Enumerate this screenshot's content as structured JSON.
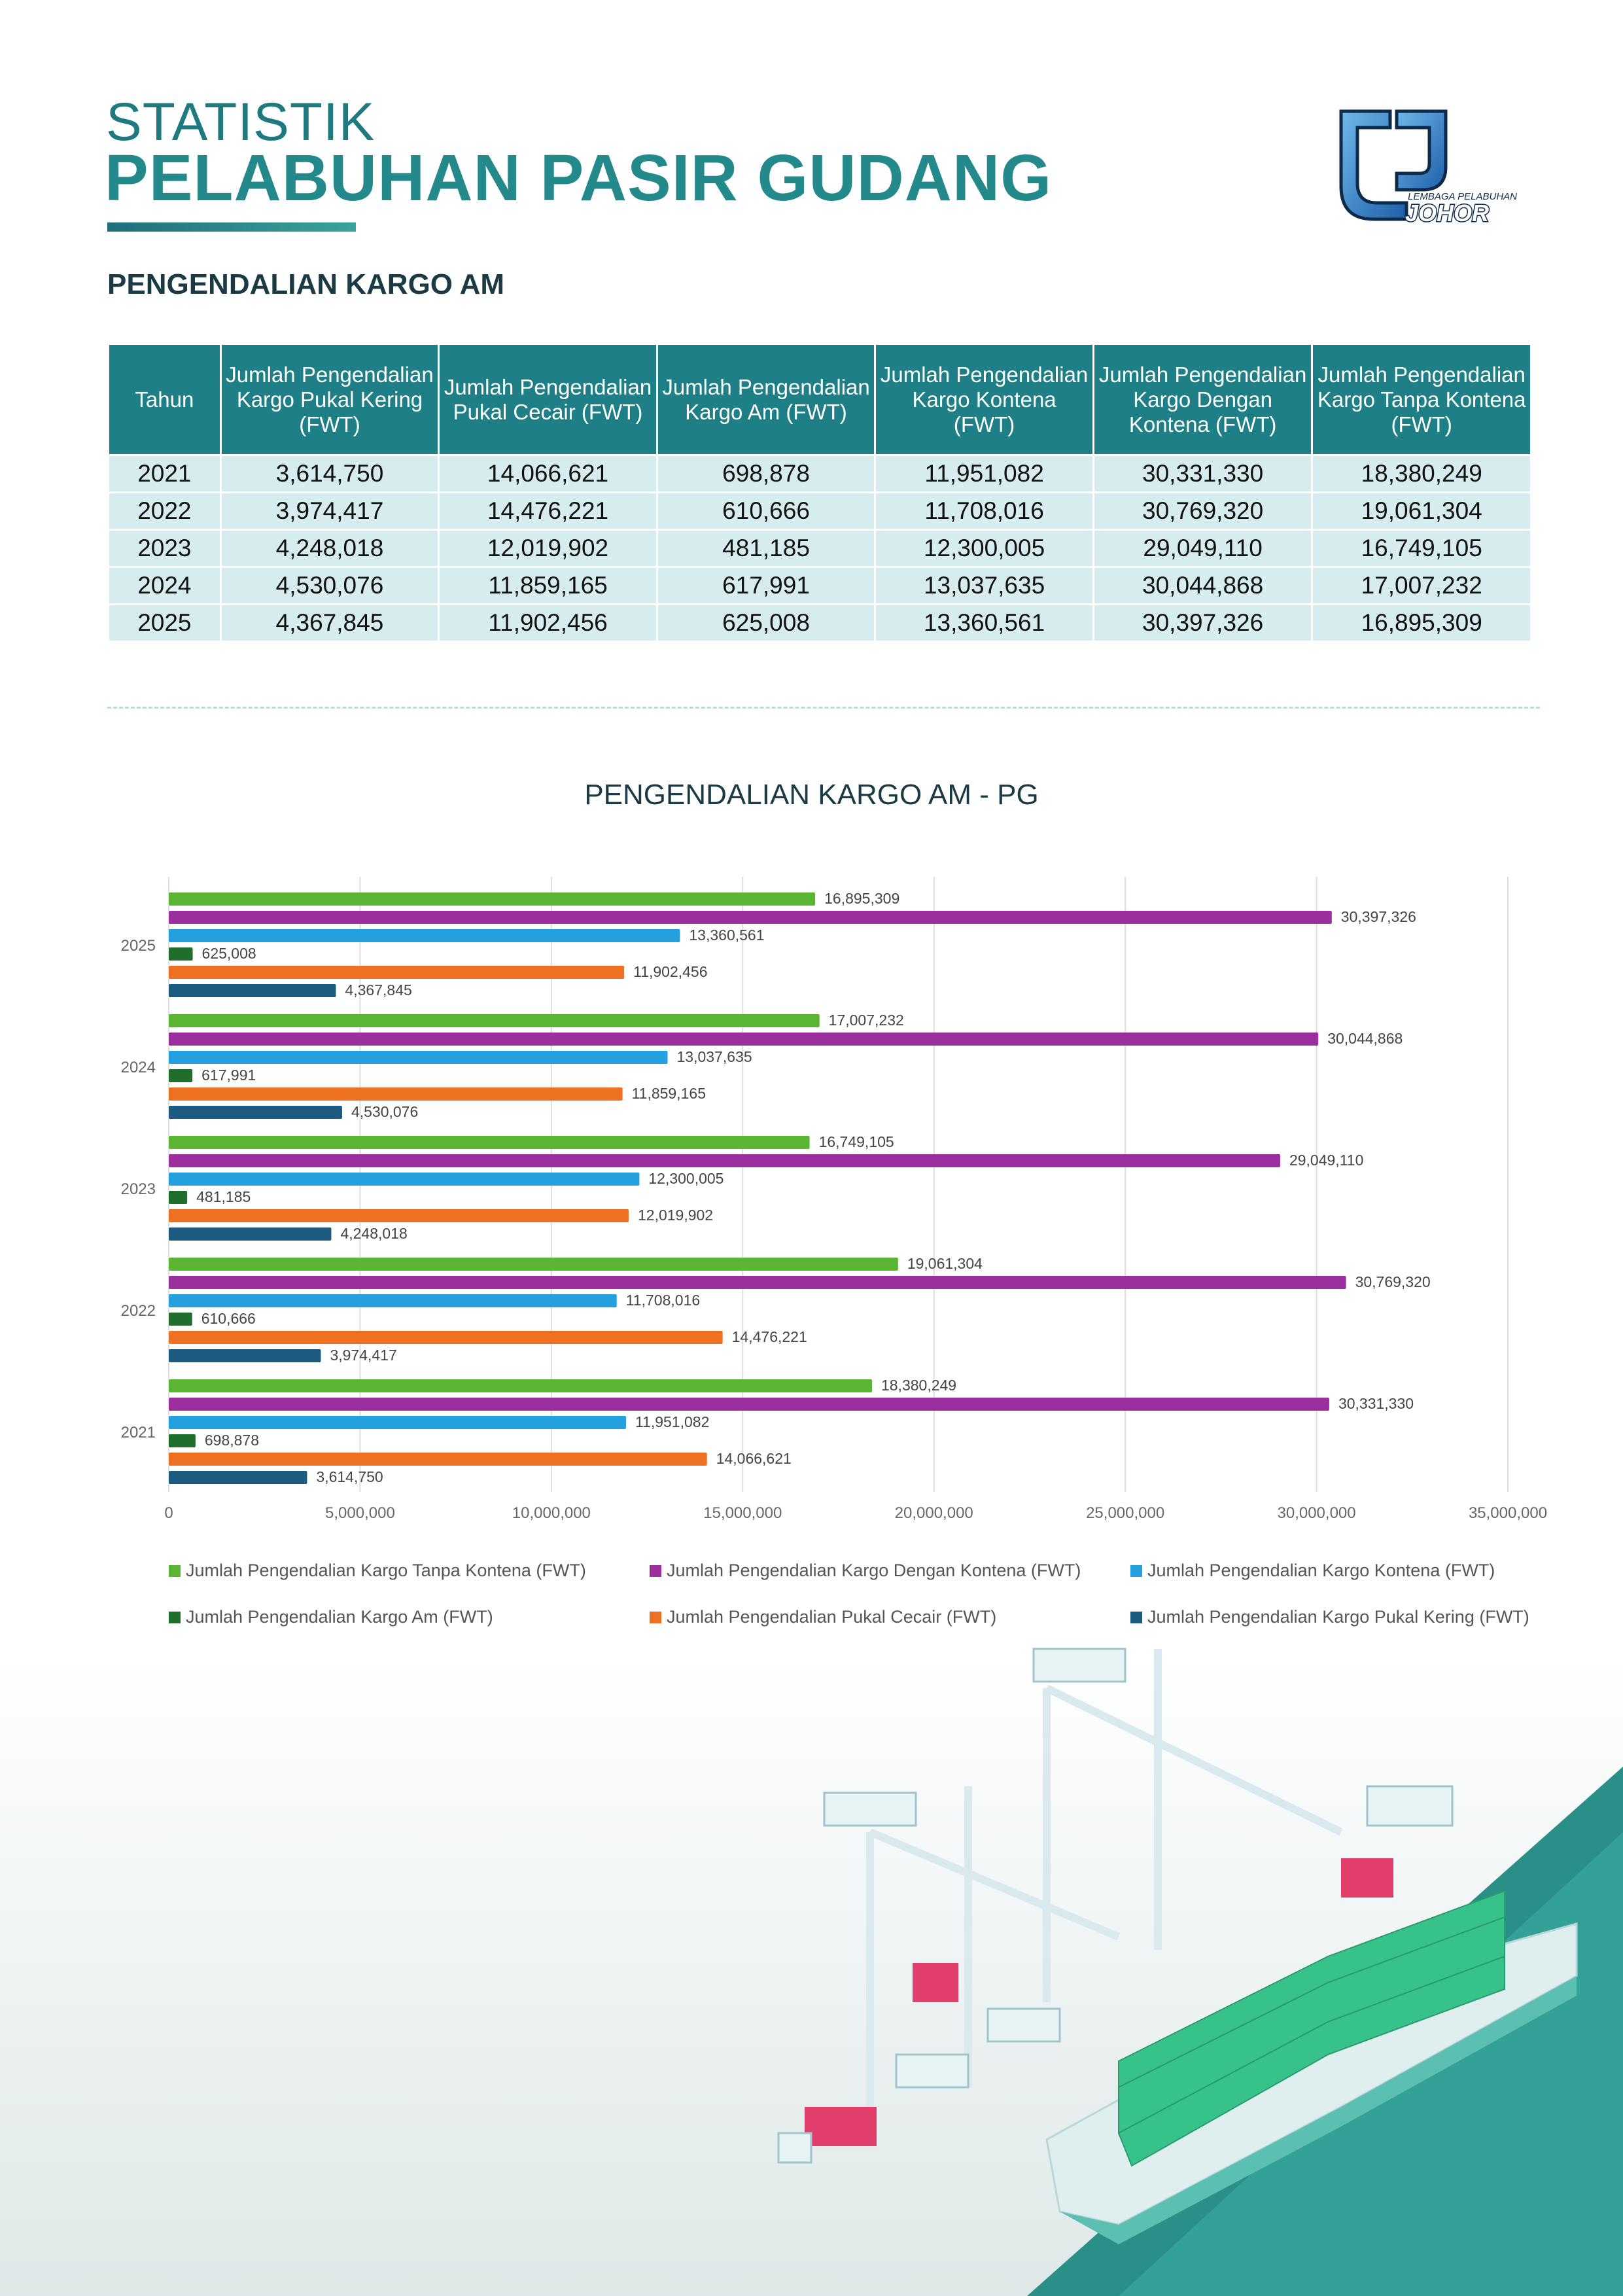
{
  "header": {
    "title_line1": "STATISTIK",
    "title_line2": "PELABUHAN PASIR GUDANG",
    "logo_text_small": "LEMBAGA PELABUHAN",
    "logo_text_big": "JOHOR"
  },
  "section": {
    "title": "PENGENDALIAN KARGO AM"
  },
  "table": {
    "headers": [
      "Tahun",
      "Jumlah Pengendalian Kargo Pukal Kering (FWT)",
      "Jumlah Pengendalian Pukal Cecair (FWT)",
      "Jumlah Pengendalian Kargo Am (FWT)",
      "Jumlah Pengendalian Kargo Kontena (FWT)",
      "Jumlah Pengendalian Kargo Dengan Kontena (FWT)",
      "Jumlah Pengendalian Kargo Tanpa Kontena (FWT)"
    ],
    "rows": [
      [
        "2021",
        "3,614,750",
        "14,066,621",
        "698,878",
        "11,951,082",
        "30,331,330",
        "18,380,249"
      ],
      [
        "2022",
        "3,974,417",
        "14,476,221",
        "610,666",
        "11,708,016",
        "30,769,320",
        "19,061,304"
      ],
      [
        "2023",
        "4,248,018",
        "12,019,902",
        "481,185",
        "12,300,005",
        "29,049,110",
        "16,749,105"
      ],
      [
        "2024",
        "4,530,076",
        "11,859,165",
        "617,991",
        "13,037,635",
        "30,044,868",
        "17,007,232"
      ],
      [
        "2025",
        "4,367,845",
        "11,902,456",
        "625,008",
        "13,360,561",
        "30,397,326",
        "16,895,309"
      ]
    ]
  },
  "chart_data": {
    "type": "bar",
    "orientation": "horizontal",
    "title": "PENGENDALIAN KARGO AM - PG",
    "categories": [
      "2025",
      "2024",
      "2023",
      "2022",
      "2021"
    ],
    "xlim": [
      0,
      35000000
    ],
    "x_ticks": [
      0,
      5000000,
      10000000,
      15000000,
      20000000,
      25000000,
      30000000,
      35000000
    ],
    "x_tick_labels": [
      "0",
      "5,000,000",
      "10,000,000",
      "15,000,000",
      "20,000,000",
      "25,000,000",
      "30,000,000",
      "35,000,000"
    ],
    "grid": "vertical",
    "legend_position": "bottom",
    "series": [
      {
        "name": "Jumlah Pengendalian Kargo Tanpa Kontena (FWT)",
        "color": "#5ab533",
        "values": [
          16895309,
          17007232,
          16749105,
          19061304,
          18380249
        ],
        "labels": [
          "16,895,309",
          "17,007,232",
          "16,749,105",
          "19,061,304",
          "18,380,249"
        ]
      },
      {
        "name": "Jumlah Pengendalian Kargo Dengan Kontena (FWT)",
        "color": "#9b2f9e",
        "values": [
          30397326,
          30044868,
          29049110,
          30769320,
          30331330
        ],
        "labels": [
          "30,397,326",
          "30,044,868",
          "29,049,110",
          "30,769,320",
          "30,331,330"
        ]
      },
      {
        "name": "Jumlah Pengendalian Kargo Kontena (FWT)",
        "color": "#24a0de",
        "values": [
          13360561,
          13037635,
          12300005,
          11708016,
          11951082
        ],
        "labels": [
          "13,360,561",
          "13,037,635",
          "12,300,005",
          "11,708,016",
          "11,951,082"
        ]
      },
      {
        "name": "Jumlah Pengendalian Kargo Am (FWT)",
        "color": "#1f6e2b",
        "values": [
          625008,
          617991,
          481185,
          610666,
          698878
        ],
        "labels": [
          "625,008",
          "617,991",
          "481,185",
          "610,666",
          "698,878"
        ]
      },
      {
        "name": "Jumlah Pengendalian Pukal Cecair (FWT)",
        "color": "#ee7122",
        "values": [
          11902456,
          11859165,
          12019902,
          14476221,
          14066621
        ],
        "labels": [
          "11,902,456",
          "11,859,165",
          "12,019,902",
          "14,476,221",
          "14,066,621"
        ]
      },
      {
        "name": "Jumlah Pengendalian Kargo Pukal Kering (FWT)",
        "color": "#1d5a80",
        "values": [
          4367845,
          4530076,
          4248018,
          3974417,
          3614750
        ],
        "labels": [
          "4,367,845",
          "4,530,076",
          "4,248,018",
          "3,974,417",
          "3,614,750"
        ]
      }
    ]
  }
}
